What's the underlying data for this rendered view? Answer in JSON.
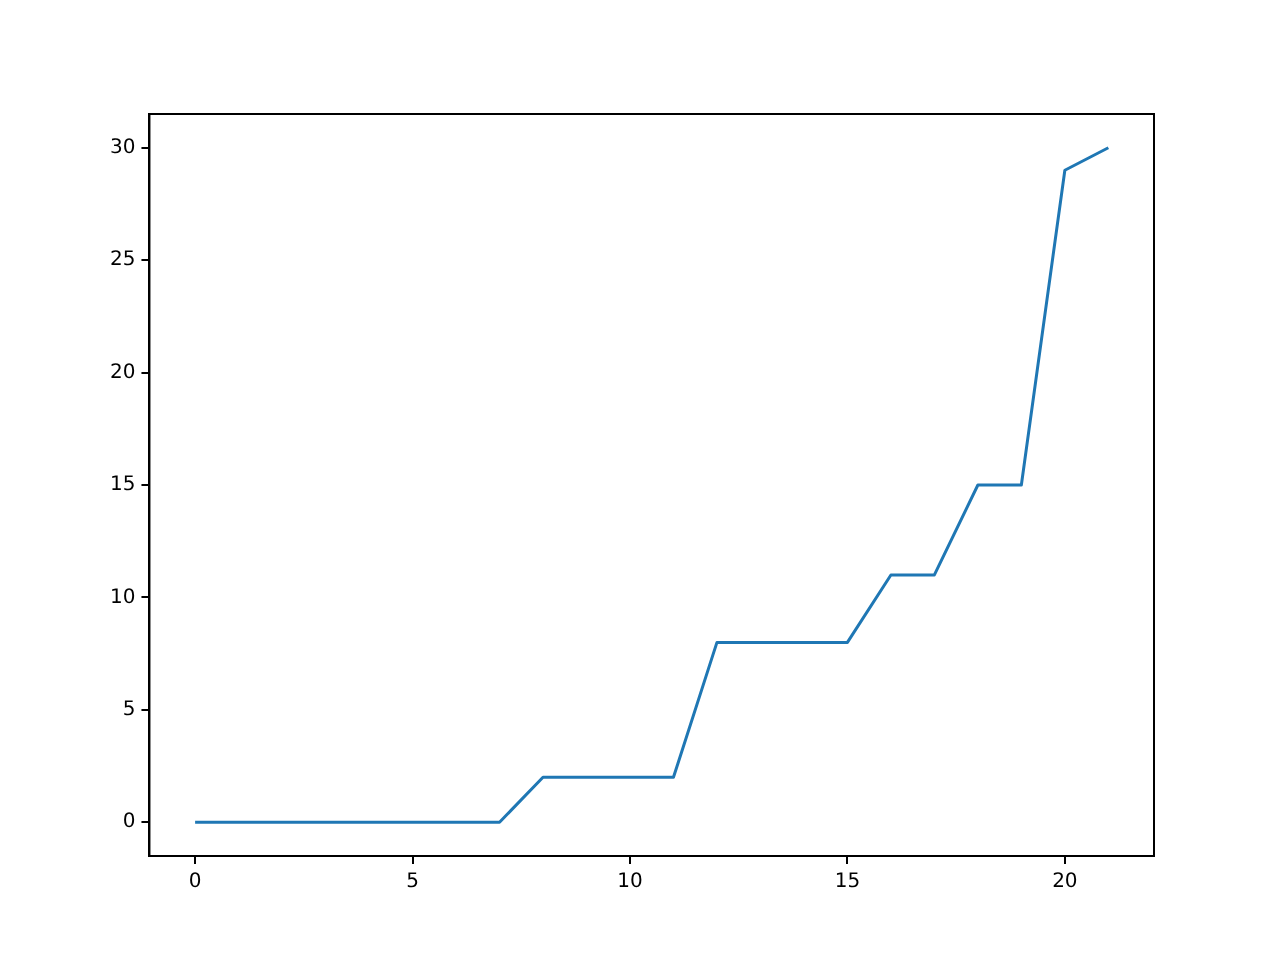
{
  "chart_data": {
    "type": "line",
    "x": [
      0,
      1,
      2,
      3,
      4,
      5,
      6,
      7,
      8,
      9,
      10,
      11,
      12,
      13,
      14,
      15,
      16,
      17,
      18,
      19,
      20,
      21
    ],
    "values": [
      0,
      0,
      0,
      0,
      0,
      0,
      0,
      0,
      2,
      2,
      2,
      2,
      8,
      8,
      8,
      8,
      11,
      11,
      15,
      15,
      29,
      30
    ],
    "color": "#1f77b4",
    "xlim": [
      -1.05,
      22.05
    ],
    "ylim": [
      -1.5,
      31.5
    ],
    "xticks": [
      0,
      5,
      10,
      15,
      20
    ],
    "yticks": [
      0,
      5,
      10,
      15,
      20,
      25,
      30
    ],
    "grid": false,
    "legend": false,
    "marker": "none"
  }
}
